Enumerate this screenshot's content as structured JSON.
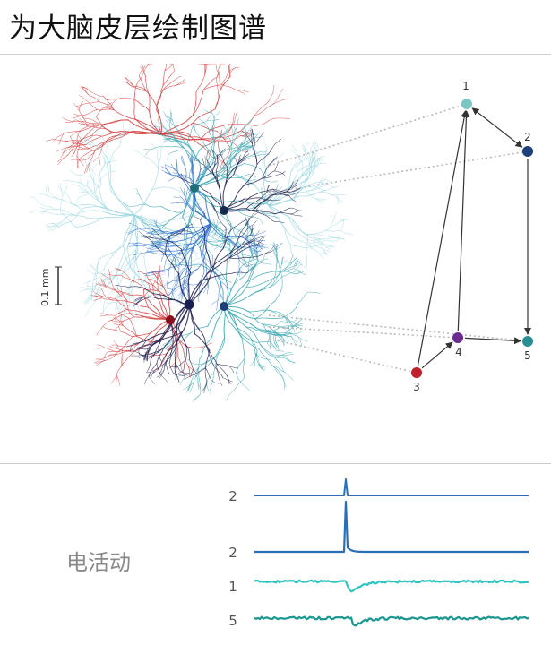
{
  "title": "为大脑皮层绘制图谱",
  "scale_bar": "0.1 mm",
  "activity_label": "电活动",
  "nodes": [
    {
      "label": "1",
      "color": "#7cc6c4"
    },
    {
      "label": "2",
      "color": "#1f3f7a"
    },
    {
      "label": "3",
      "color": "#c0202a"
    },
    {
      "label": "4",
      "color": "#6a2c91"
    },
    {
      "label": "5",
      "color": "#2a8e93"
    }
  ],
  "traces": [
    {
      "label": "2",
      "color": "#2a6fb5"
    },
    {
      "label": "2",
      "color": "#2a6fb5"
    },
    {
      "label": "1",
      "color": "#2ec4c4"
    },
    {
      "label": "5",
      "color": "#1b9690"
    }
  ],
  "colors": {
    "red_neuron": "#d23a3a",
    "teal_neuron": "#3aa6b0",
    "dark_neuron": "#1e1e4e",
    "blue_neuron": "#2f6fd0",
    "light_cyan_neuron": "#9fd8e0",
    "edge": "#333333",
    "dotted_link": "#b5b5b5"
  }
}
